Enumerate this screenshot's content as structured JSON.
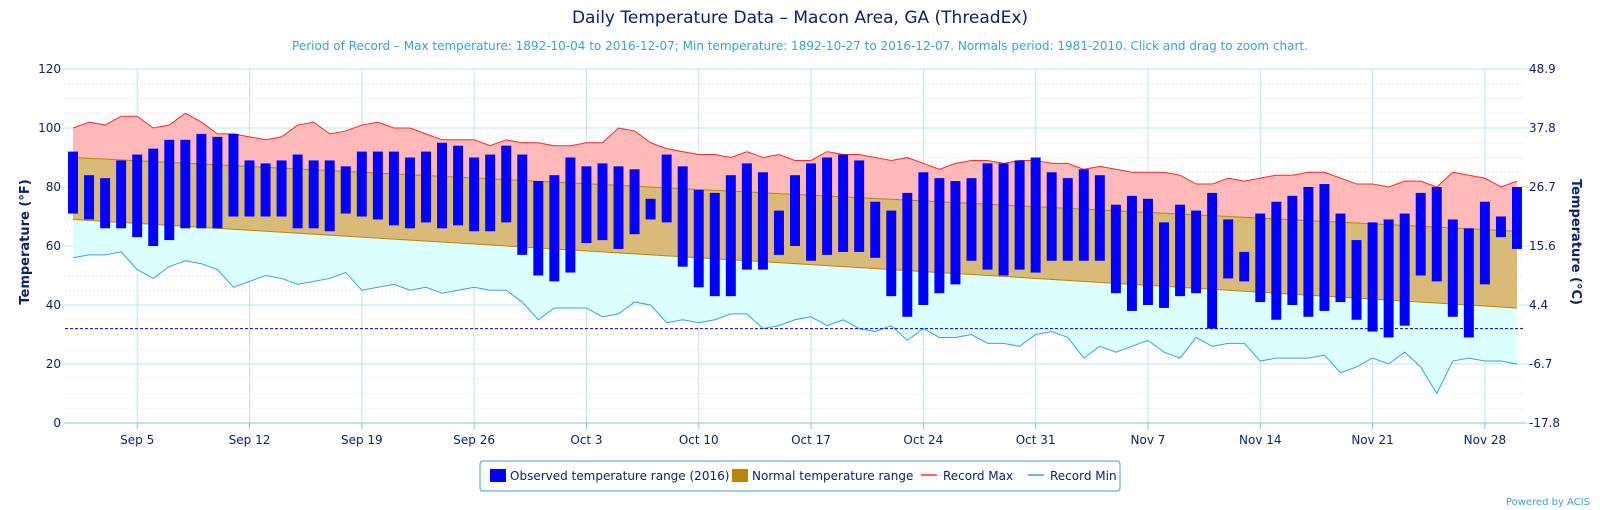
{
  "title": "Daily Temperature Data – Macon Area, GA (ThreadEx)",
  "subtitle": "Period of Record – Max temperature: 1892-10-04 to 2016-12-07; Min temperature: 1892-10-27 to 2016-12-07. Normals period: 1981-2010. Click and drag to zoom chart.",
  "credit": "Powered by ACIS",
  "colors": {
    "observed": "#0000ff",
    "normal_fill": "#d9ba78",
    "normal_stroke": "#b8860b",
    "record_max_fill": "#ffb9b9",
    "record_max_line": "#ff2a2a",
    "record_min_fill": "#dcffff",
    "record_min_line": "#3aa0e8",
    "freezing_line": "#0000cc",
    "grid": "#bfe3f5",
    "text": "#0b1f6b",
    "subtitle": "#3aa0d8"
  },
  "legend": {
    "observed_label": "Observed temperature range (2016)",
    "normal_label": "Normal temperature range",
    "record_max_label": "Record Max",
    "record_min_label": "Record Min"
  },
  "chart_data": {
    "type": "bar",
    "title": "Daily Temperature Data – Macon Area, GA (ThreadEx)",
    "ylabel_left": "Temperature (°F)",
    "ylabel_right": "Temperature (°C)",
    "ylim": [
      0,
      120
    ],
    "y_ticks_left": [
      "0",
      "20",
      "40",
      "60",
      "80",
      "100",
      "120"
    ],
    "y_ticks_right": [
      "-17.8",
      "-6.7",
      "4.4",
      "15.6",
      "26.7",
      "37.8",
      "48.9"
    ],
    "x_tick_labels": [
      "Sep 5",
      "Sep 12",
      "Sep 19",
      "Sep 26",
      "Oct 3",
      "Oct 10",
      "Oct 17",
      "Oct 24",
      "Oct 31",
      "Nov 7",
      "Nov 14",
      "Nov 21",
      "Nov 28"
    ],
    "x_tick_day_index": [
      4,
      11,
      18,
      25,
      32,
      39,
      46,
      53,
      60,
      67,
      74,
      81,
      88
    ],
    "start_date": "2016-09-01",
    "end_date": "2016-11-30",
    "freezing_line": 32,
    "legend_position": "bottom-center",
    "series": [
      {
        "name": "Observed temperature range (2016)",
        "type": "range-bar",
        "high": [
          92,
          84,
          83,
          89,
          91,
          93,
          96,
          96,
          98,
          97,
          98,
          89,
          88,
          89,
          91,
          89,
          89,
          87,
          92,
          92,
          92,
          90,
          92,
          95,
          94,
          90,
          91,
          94,
          91,
          82,
          84,
          90,
          87,
          88,
          87,
          86,
          76,
          91,
          87,
          79,
          78,
          84,
          88,
          85,
          72,
          84,
          88,
          90,
          91,
          89,
          75,
          72,
          78,
          85,
          83,
          82,
          83,
          88,
          88,
          89,
          90,
          85,
          83,
          86,
          84,
          74,
          77,
          76,
          68,
          74,
          72,
          78,
          69,
          58,
          71,
          75,
          77,
          80,
          81,
          71,
          62,
          68,
          69,
          71,
          78,
          80,
          69,
          66,
          75,
          70,
          80
        ],
        "low": [
          71,
          69,
          66,
          66,
          63,
          60,
          62,
          66,
          66,
          66,
          70,
          70,
          70,
          70,
          66,
          66,
          65,
          71,
          70,
          69,
          67,
          66,
          68,
          66,
          67,
          65,
          65,
          68,
          57,
          50,
          48,
          51,
          61,
          62,
          59,
          64,
          69,
          68,
          53,
          46,
          43,
          43,
          52,
          52,
          57,
          60,
          55,
          57,
          58,
          58,
          56,
          43,
          36,
          40,
          44,
          47,
          55,
          52,
          50,
          52,
          51,
          55,
          55,
          55,
          55,
          44,
          38,
          40,
          39,
          43,
          44,
          32,
          49,
          48,
          41,
          35,
          40,
          36,
          38,
          41,
          35,
          31,
          29,
          33,
          50,
          48,
          36,
          29,
          47,
          63,
          59
        ]
      },
      {
        "name": "Normal temperature range",
        "type": "band",
        "high_start": 90,
        "high_end": 65,
        "low_start": 69,
        "low_end": 39
      },
      {
        "name": "Record Max",
        "type": "line",
        "values": [
          100,
          102,
          101,
          104,
          104,
          100,
          101,
          105,
          102,
          98,
          98,
          97,
          96,
          97,
          101,
          102,
          98,
          99,
          101,
          102,
          100,
          100,
          98,
          96,
          96,
          96,
          94,
          96,
          95,
          95,
          94,
          94,
          95,
          95,
          100,
          99,
          95,
          93,
          92,
          91,
          91,
          90,
          92,
          90,
          91,
          89,
          89,
          92,
          91,
          91,
          90,
          89,
          90,
          88,
          86,
          88,
          89,
          89,
          88,
          89,
          89,
          88,
          88,
          86,
          87,
          86,
          85,
          85,
          85,
          84,
          81,
          81,
          83,
          82,
          83,
          84,
          84,
          85,
          85,
          83,
          81,
          81,
          80,
          82,
          82,
          80,
          85,
          84,
          83,
          80,
          82
        ]
      },
      {
        "name": "Record Min",
        "type": "line",
        "values": [
          56,
          57,
          57,
          58,
          52,
          49,
          53,
          55,
          54,
          52,
          46,
          48,
          50,
          49,
          47,
          48,
          49,
          51,
          45,
          46,
          47,
          45,
          46,
          44,
          45,
          46,
          45,
          45,
          41,
          35,
          39,
          39,
          39,
          36,
          37,
          41,
          40,
          34,
          35,
          34,
          35,
          37,
          37,
          32,
          33,
          35,
          36,
          33,
          35,
          32,
          31,
          33,
          28,
          32,
          29,
          29,
          30,
          27,
          27,
          26,
          30,
          31,
          29,
          22,
          26,
          24,
          26,
          28,
          24,
          22,
          29,
          26,
          27,
          27,
          21,
          22,
          22,
          22,
          23,
          17,
          19,
          22,
          20,
          24,
          19,
          10,
          21,
          22,
          21,
          21,
          20
        ]
      }
    ]
  }
}
